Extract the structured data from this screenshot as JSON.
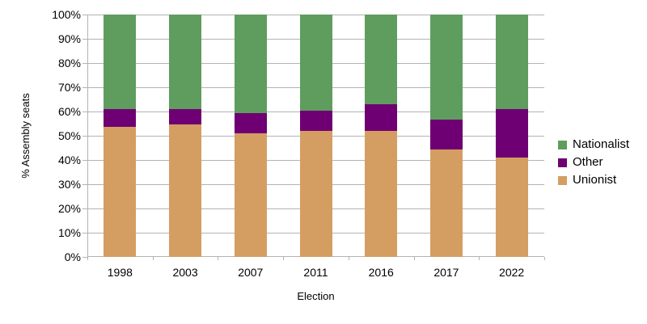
{
  "axes": {
    "y_title": "% Assembly seats",
    "x_title": "Election",
    "y_tick_labels": [
      "100%",
      "90%",
      "80%",
      "70%",
      "60%",
      "50%",
      "40%",
      "30%",
      "20%",
      "10%",
      "0%"
    ]
  },
  "legend": {
    "items": [
      {
        "label": "Nationalist",
        "color": "#5f9d5f"
      },
      {
        "label": "Other",
        "color": "#6e0073"
      },
      {
        "label": "Unionist",
        "color": "#d49e62"
      }
    ]
  },
  "chart_data": {
    "type": "bar",
    "stacked": true,
    "units": "percent of seats",
    "title": "",
    "xlabel": "Election",
    "ylabel": "% Assembly seats",
    "ylim": [
      0,
      100
    ],
    "y_tick_step": 10,
    "grid": true,
    "legend_position": "right",
    "categories": [
      "1998",
      "2003",
      "2007",
      "2011",
      "2016",
      "2017",
      "2022"
    ],
    "stack_order": "bottom-to-top",
    "series": [
      {
        "name": "Unionist",
        "color": "#d49e62",
        "values": [
          53.7,
          54.6,
          50.9,
          51.9,
          51.9,
          44.4,
          41.1
        ]
      },
      {
        "name": "Other",
        "color": "#6e0073",
        "values": [
          7.4,
          6.5,
          8.3,
          8.3,
          11.1,
          12.2,
          20.0
        ]
      },
      {
        "name": "Nationalist",
        "color": "#5f9d5f",
        "values": [
          38.9,
          38.9,
          40.7,
          39.8,
          37.0,
          43.3,
          38.9
        ]
      }
    ]
  },
  "colors": {
    "grid": "#b3b3b3",
    "axis": "#b3b3b3",
    "text": "#000000",
    "background": "#ffffff"
  }
}
